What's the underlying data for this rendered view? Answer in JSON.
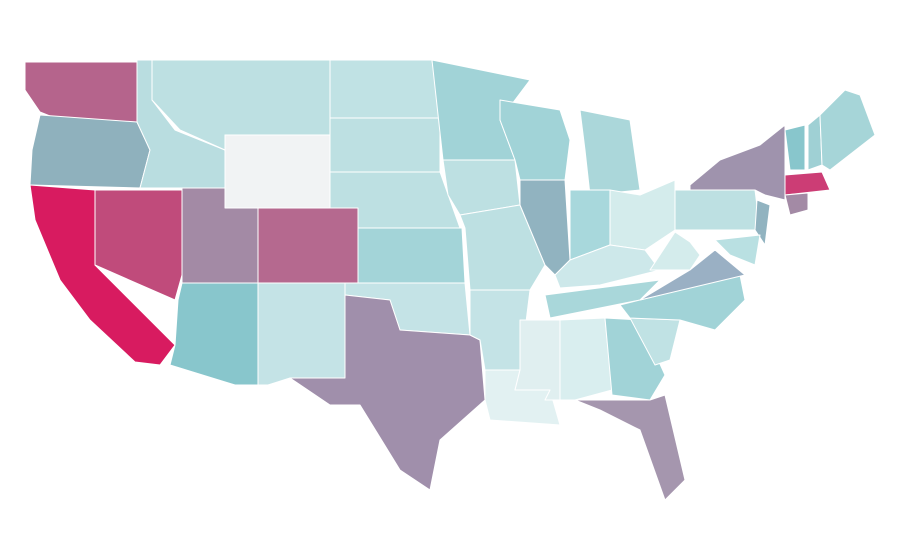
{
  "map": {
    "regions": [
      {
        "color": "#b5648c"
      },
      {
        "color": "#8fb1bd"
      },
      {
        "color": "#d81b60"
      },
      {
        "color": "#c04b7b"
      },
      {
        "color": "#b9dde0"
      },
      {
        "color": "#bde0e2"
      },
      {
        "color": "#f1f3f4"
      },
      {
        "color": "#a38aa5"
      },
      {
        "color": "#b5698f"
      },
      {
        "color": "#88c6cc"
      },
      {
        "color": "#c4e3e6"
      },
      {
        "color": "#c0e2e4"
      },
      {
        "color": "#bde0e2"
      },
      {
        "color": "#bde0e2"
      },
      {
        "color": "#a3d4d8"
      },
      {
        "color": "#c4e3e6"
      },
      {
        "color": "#a08fab"
      },
      {
        "color": "#a1d3d7"
      },
      {
        "color": "#bde0e2"
      },
      {
        "color": "#bde0e2"
      },
      {
        "color": "#c4e3e6"
      },
      {
        "color": "#e2f1f2"
      },
      {
        "color": "#e0eff0"
      },
      {
        "color": "#a1d3d7"
      },
      {
        "color": "#91b3c0"
      },
      {
        "color": "#abd7da"
      },
      {
        "color": "#a8d8dc"
      },
      {
        "color": "#d4ecec"
      },
      {
        "color": "#cde8ea"
      },
      {
        "color": "#a9d7da"
      },
      {
        "color": "#d9eeef"
      },
      {
        "color": "#a1d3d7"
      },
      {
        "color": "#a596ae"
      },
      {
        "color": "#c0e2e4"
      },
      {
        "color": "#a1d3d7"
      },
      {
        "color": "#9ab0c4"
      },
      {
        "color": "#d4ecec"
      },
      {
        "color": "#bde0e2"
      },
      {
        "color": "#9f93ad"
      },
      {
        "color": "#91b3c0"
      },
      {
        "color": "#b9e0e2"
      },
      {
        "color": "#88c6cc"
      },
      {
        "color": "#9fd0d4"
      },
      {
        "color": "#a6d5d8"
      },
      {
        "color": "#cc3d75"
      },
      {
        "color": "#a38aa5"
      }
    ]
  }
}
